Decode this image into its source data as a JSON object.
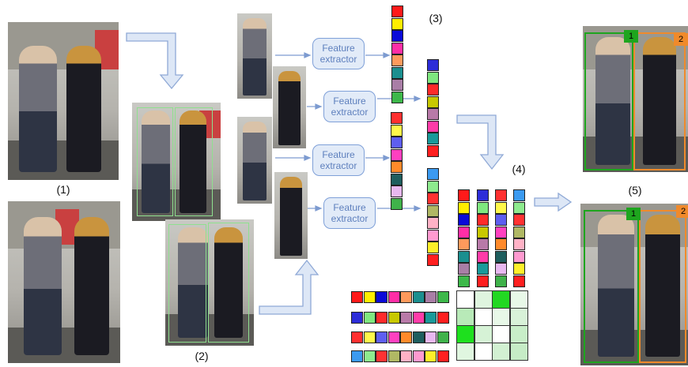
{
  "stage_labels": {
    "step1": "(1)",
    "step2": "(2)",
    "step3": "(3)",
    "step4": "(4)",
    "step5": "(5)"
  },
  "feature_extractor": {
    "line1": "Feature",
    "line2": "extractor"
  },
  "tracks": {
    "id1": "1",
    "id2": "2"
  },
  "colors": {
    "arrow_fill": "#dde7f6",
    "arrow_stroke": "#8fa9d6",
    "box_green": "#8fe08f",
    "track1": "#1ea51e",
    "track2": "#f08a2b"
  },
  "feature_vectors": [
    [
      "#ff1a1a",
      "#ffee00",
      "#0a0ad8",
      "#ff2ea6",
      "#ff9a5c",
      "#1b8f8f",
      "#a97ea6",
      "#3db84a"
    ],
    [
      "#2d2dd8",
      "#7fe87f",
      "#ff2a2a",
      "#c8c800",
      "#b87aa8",
      "#ff3ca8",
      "#1a9a9a",
      "#ff1f1f"
    ],
    [
      "#ff3030",
      "#fff84a",
      "#5e5ef0",
      "#ff40c0",
      "#ff8a2a",
      "#1e5e5e",
      "#e8b8f0",
      "#3fb24a"
    ],
    [
      "#3b9af0",
      "#8eeb8e",
      "#ff3232",
      "#b0b864",
      "#ffb2c6",
      "#ff9ad0",
      "#ffef2a",
      "#ff2020"
    ]
  ],
  "matrix_cells": [
    [
      "#ffffff",
      "#dff5df",
      "#22d822",
      "#e8f8e8"
    ],
    [
      "#b8eab8",
      "#ffffff",
      "#e8f8e8",
      "#d8f2d8"
    ],
    [
      "#1ee01e",
      "#d6f2d6",
      "#ffffff",
      "#c8eec8"
    ],
    [
      "#e0f6e0",
      "#ffffff",
      "#d2f0d2",
      "#c6ecc6"
    ]
  ]
}
